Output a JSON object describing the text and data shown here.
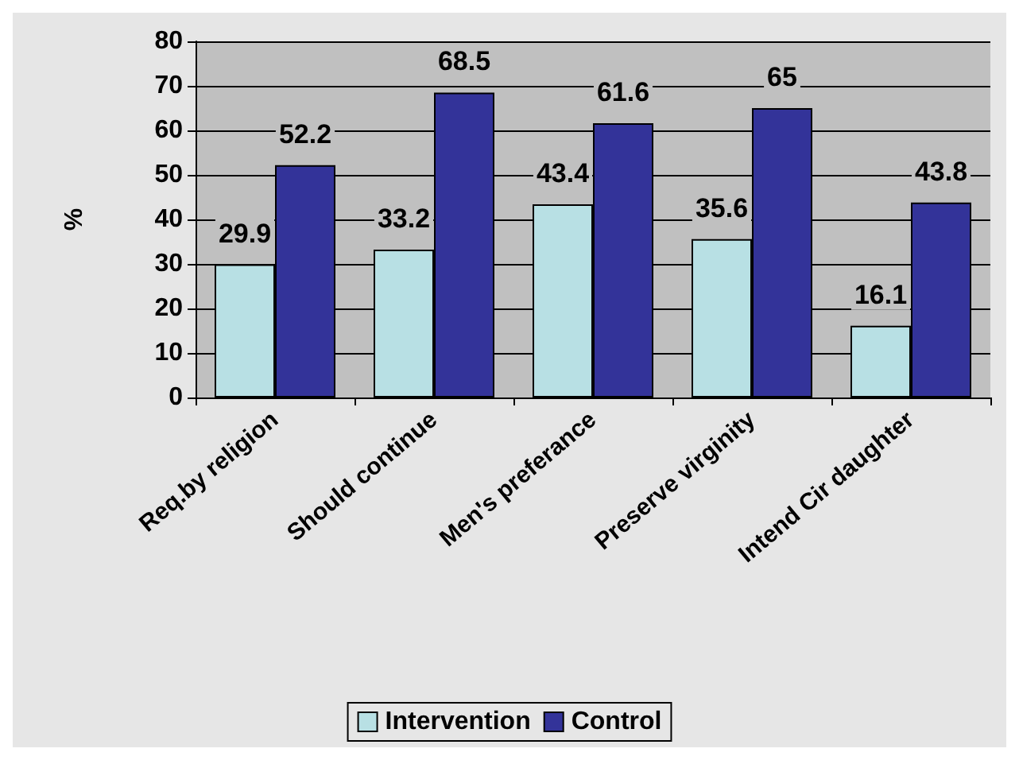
{
  "chart_data": {
    "type": "bar",
    "ylabel": "%",
    "categories": [
      "Req.by religion",
      "Should continue",
      "Men's preferance",
      "Preserve virginity",
      "Intend Cir daughter"
    ],
    "series": [
      {
        "name": "Intervention",
        "color": "#b8e0e4",
        "values": [
          29.9,
          33.2,
          43.4,
          35.6,
          16.1
        ]
      },
      {
        "name": "Control",
        "color": "#333399",
        "values": [
          52.2,
          68.5,
          61.6,
          65,
          43.8
        ]
      }
    ],
    "ylim": [
      0,
      80
    ],
    "yticks": [
      0,
      10,
      20,
      30,
      40,
      50,
      60,
      70,
      80
    ],
    "grid": "y",
    "legend": "bottom",
    "data_labels": true
  }
}
